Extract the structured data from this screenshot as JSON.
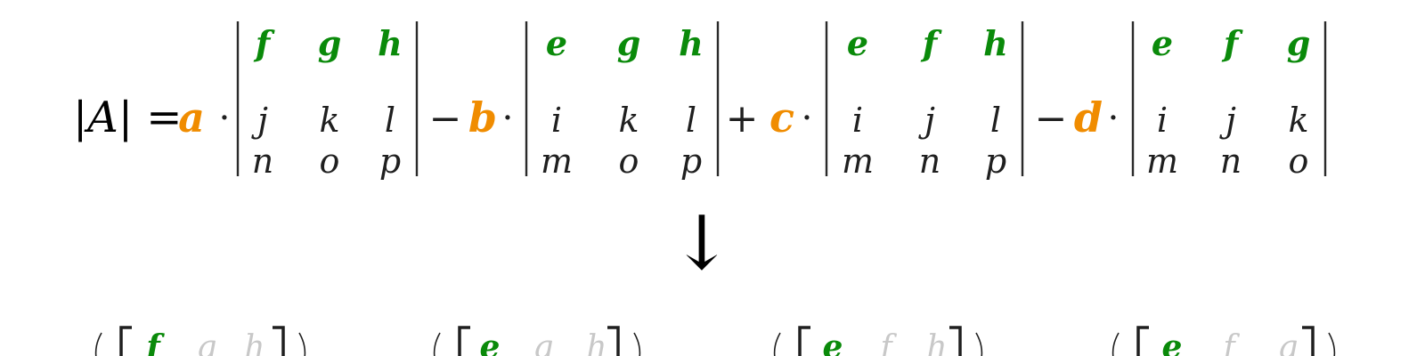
{
  "colors": {
    "coefficient": "#f08c00",
    "top_row": "#0a8a0a",
    "text": "#1f1f1f",
    "faded": "#c8c8c8",
    "bar": "#2a2a2a"
  },
  "lhs": "|A| =",
  "terms": [
    {
      "sign": "",
      "coef": "a",
      "rows": [
        [
          "f",
          "g",
          "h"
        ],
        [
          "j",
          "k",
          "l"
        ],
        [
          "n",
          "o",
          "p"
        ]
      ]
    },
    {
      "sign": "−",
      "coef": "b",
      "rows": [
        [
          "e",
          "g",
          "h"
        ],
        [
          "i",
          "k",
          "l"
        ],
        [
          "m",
          "o",
          "p"
        ]
      ]
    },
    {
      "sign": "+",
      "coef": "c",
      "rows": [
        [
          "e",
          "f",
          "h"
        ],
        [
          "i",
          "j",
          "l"
        ],
        [
          "m",
          "n",
          "p"
        ]
      ]
    },
    {
      "sign": "−",
      "coef": "d",
      "rows": [
        [
          "e",
          "f",
          "g"
        ],
        [
          "i",
          "j",
          "k"
        ],
        [
          "m",
          "n",
          "o"
        ]
      ]
    }
  ],
  "dot": "·",
  "arrow": "↓",
  "bottom_row": [
    [
      "f",
      "g",
      "h"
    ],
    [
      "e",
      "g",
      "h"
    ],
    [
      "e",
      "f",
      "h"
    ],
    [
      "e",
      "f",
      "g"
    ]
  ]
}
